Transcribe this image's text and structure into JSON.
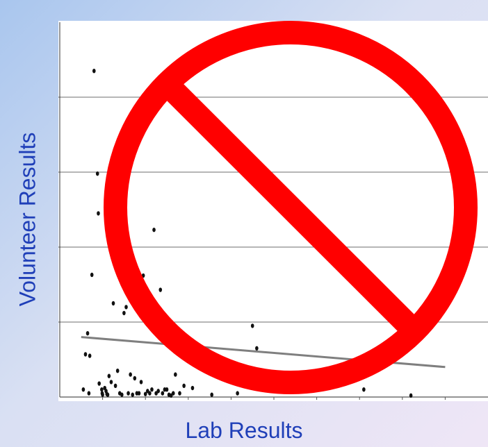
{
  "chart_data": {
    "type": "scatter",
    "title": "",
    "xlabel": "Lab Results",
    "ylabel": "Volunteer Results",
    "tick_labels_shown": false,
    "grid": "horizontal",
    "xlim": [
      0,
      10
    ],
    "ylim": [
      0,
      5
    ],
    "series": [
      {
        "x": [
          0.55,
          0.6,
          0.65,
          0.68,
          0.7,
          0.75,
          0.8,
          0.88,
          0.9,
          0.92,
          0.98,
          0.99,
          1.0,
          1.05,
          1.08,
          1.1,
          1.12,
          1.15,
          1.2,
          1.25,
          1.3,
          1.35,
          1.4,
          1.45,
          1.5,
          1.55,
          1.6,
          1.65,
          1.7,
          1.75,
          1.8,
          1.85,
          1.9,
          1.95,
          2.0,
          2.05,
          2.1,
          2.15,
          2.2,
          2.25,
          2.3,
          2.35,
          2.4,
          2.45,
          2.5,
          2.55,
          2.6,
          2.65,
          2.7,
          2.8,
          2.9,
          3.0,
          3.1,
          3.2,
          3.3,
          3.55,
          4.15,
          4.5,
          4.6,
          5.3,
          6.35,
          7.1,
          8.2
        ],
        "y": [
          0.1,
          0.57,
          0.85,
          0.05,
          0.55,
          1.63,
          4.35,
          2.98,
          2.45,
          0.18,
          0.1,
          0.05,
          0.03,
          0.12,
          0.08,
          0.04,
          0.03,
          0.28,
          0.2,
          1.25,
          0.15,
          0.35,
          0.05,
          0.03,
          1.12,
          1.2,
          0.05,
          0.3,
          0.03,
          0.25,
          0.05,
          0.05,
          0.2,
          1.62,
          0.04,
          0.08,
          0.05,
          0.1,
          2.23,
          0.05,
          0.08,
          1.43,
          0.05,
          0.1,
          0.1,
          0.03,
          0.02,
          0.05,
          0.3,
          0.05,
          0.15,
          0.55,
          0.12,
          0.5,
          0.6,
          0.03,
          0.05,
          0.95,
          0.65,
          0.2,
          0.15,
          0.1,
          0.02
        ]
      }
    ],
    "trendline": {
      "x": [
        0.5,
        9.0
      ],
      "y": [
        0.8,
        0.4
      ]
    }
  }
}
